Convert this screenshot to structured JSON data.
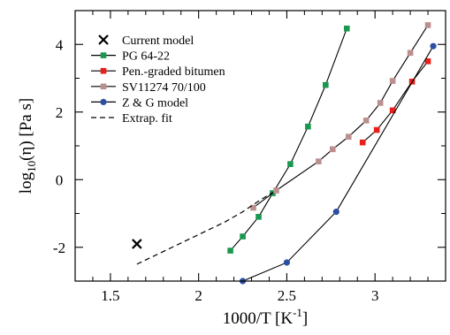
{
  "chart_data": {
    "type": "line",
    "title": "",
    "xlabel_main": "1000/T  [K",
    "xlabel_sup": "-1",
    "xlabel_end": "]",
    "ylabel_main": "log",
    "ylabel_sub": "10",
    "ylabel_end": "(η)  [Pa s]",
    "xlim": [
      1.3,
      3.4
    ],
    "ylim": [
      -3,
      5
    ],
    "xticks": [
      1.5,
      2,
      2.5,
      3
    ],
    "xtick_labels": [
      "1.5",
      "2",
      "2.5",
      "3"
    ],
    "yticks": [
      -2,
      0,
      2,
      4
    ],
    "ytick_labels": [
      "-2",
      "0",
      "2",
      "4"
    ],
    "grid": false,
    "legend_position": "top-left",
    "series": [
      {
        "name": "Current model",
        "marker": "x",
        "line": "none",
        "color": "#000000",
        "x": [
          1.65
        ],
        "y": [
          -1.9
        ]
      },
      {
        "name": "PG 64-22",
        "marker": "square",
        "line": "solid",
        "color": "#1a9850",
        "x": [
          2.18,
          2.25,
          2.34,
          2.42,
          2.52,
          2.62,
          2.72,
          2.84
        ],
        "y": [
          -2.1,
          -1.68,
          -1.1,
          -0.4,
          0.46,
          1.57,
          2.8,
          4.47
        ]
      },
      {
        "name": "Pen.-graded bitumen",
        "marker": "square",
        "line": "solid",
        "color": "#e8201c",
        "x": [
          2.93,
          3.01,
          3.1,
          3.21,
          3.3
        ],
        "y": [
          1.1,
          1.47,
          2.05,
          2.9,
          3.5
        ]
      },
      {
        "name": "SV11274 70/100",
        "marker": "square",
        "line": "solid",
        "color": "#bc8f8f",
        "x": [
          2.31,
          2.44,
          2.68,
          2.76,
          2.85,
          2.95,
          3.03,
          3.1,
          3.2,
          3.3
        ],
        "y": [
          -0.83,
          -0.32,
          0.54,
          0.9,
          1.27,
          1.75,
          2.27,
          2.92,
          3.75,
          4.57
        ]
      },
      {
        "name": "Z & G model",
        "marker": "circle",
        "line": "solid",
        "color": "#2c4fa3",
        "x": [
          2.25,
          2.5,
          2.78,
          3.33
        ],
        "y": [
          -3.0,
          -2.45,
          -0.95,
          3.95
        ]
      },
      {
        "name": "Extrap. fit",
        "marker": "none",
        "line": "dashed",
        "color": "#000000",
        "x": [
          1.65,
          1.75,
          1.85,
          1.95,
          2.05,
          2.15,
          2.25,
          2.35,
          2.42
        ],
        "y": [
          -2.5,
          -2.25,
          -2.0,
          -1.75,
          -1.5,
          -1.25,
          -0.95,
          -0.6,
          -0.38
        ]
      }
    ]
  }
}
